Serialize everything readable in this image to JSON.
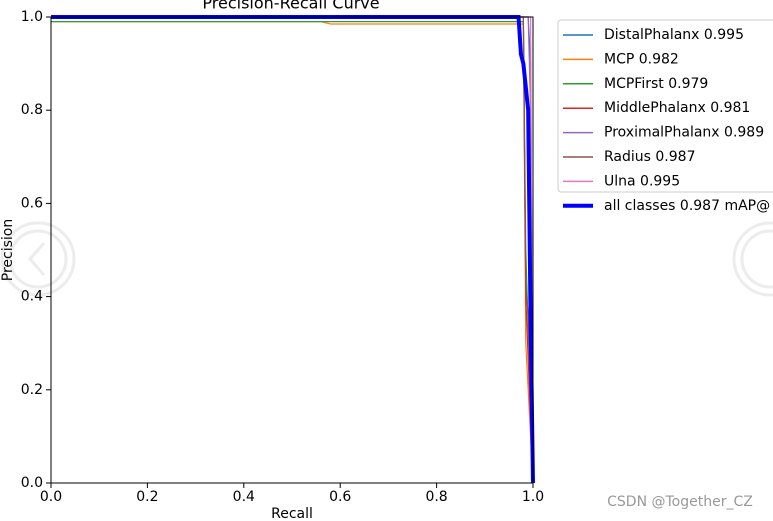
{
  "chart_data": {
    "type": "line",
    "title": "Precision-Recall Curve",
    "x_label": "Recall",
    "y_label": "Precision",
    "xlim": [
      0,
      1
    ],
    "ylim": [
      0,
      1
    ],
    "xticks": [
      {
        "value": 0,
        "label": "0.0"
      },
      0.2,
      0.4,
      0.6,
      0.8,
      {
        "value": 1,
        "label": "1.0"
      }
    ],
    "yticks": [
      {
        "value": 0,
        "label": "0.0"
      },
      0.2,
      0.4,
      0.6,
      0.8,
      {
        "value": 1,
        "label": "1.0"
      }
    ],
    "legend": "outside-right",
    "series": [
      {
        "name": "DistalPhalanx 0.995",
        "color": "#1f77b4",
        "x": [
          0,
          0.99,
          0.995,
          1
        ],
        "values": [
          1,
          1,
          0.9,
          0
        ]
      },
      {
        "name": "MCP 0.982",
        "color": "#ff7f0e",
        "x": [
          0,
          0.5,
          0.56,
          0.58,
          0.98,
          0.985,
          1
        ],
        "values": [
          0.99,
          0.99,
          0.99,
          0.985,
          0.985,
          0.3,
          0
        ]
      },
      {
        "name": "MCPFirst 0.979",
        "color": "#2ca02c",
        "x": [
          0,
          0.02,
          0.98,
          0.985,
          1
        ],
        "values": [
          0.99,
          0.99,
          0.99,
          0.5,
          0
        ]
      },
      {
        "name": "MiddlePhalanx 0.981",
        "color": "#d62728",
        "x": [
          0,
          0.98,
          0.985,
          1
        ],
        "values": [
          1,
          1,
          0.4,
          0
        ]
      },
      {
        "name": "ProximalPhalanx 0.989",
        "color": "#9467bd",
        "x": [
          0,
          0.99,
          0.995,
          1
        ],
        "values": [
          1,
          1,
          0.8,
          0
        ]
      },
      {
        "name": "Radius 0.987",
        "color": "#8c564b",
        "x": [
          0,
          0.98,
          0.985,
          0.99,
          1
        ],
        "values": [
          1,
          1,
          0.42,
          0.36,
          0
        ]
      },
      {
        "name": "Ulna 0.995",
        "color": "#e377c2",
        "x": [
          0,
          0.995,
          1
        ],
        "values": [
          1,
          1,
          0
        ]
      },
      {
        "name": "all classes 0.987 mAP@",
        "color": "#0000ff",
        "x": [
          0,
          0.97,
          0.975,
          0.98,
          0.99,
          0.995,
          1
        ],
        "values": [
          1,
          1,
          0.92,
          0.9,
          0.8,
          0.35,
          0
        ],
        "width": 4
      }
    ]
  },
  "watermark": "CSDN @Together_CZ"
}
